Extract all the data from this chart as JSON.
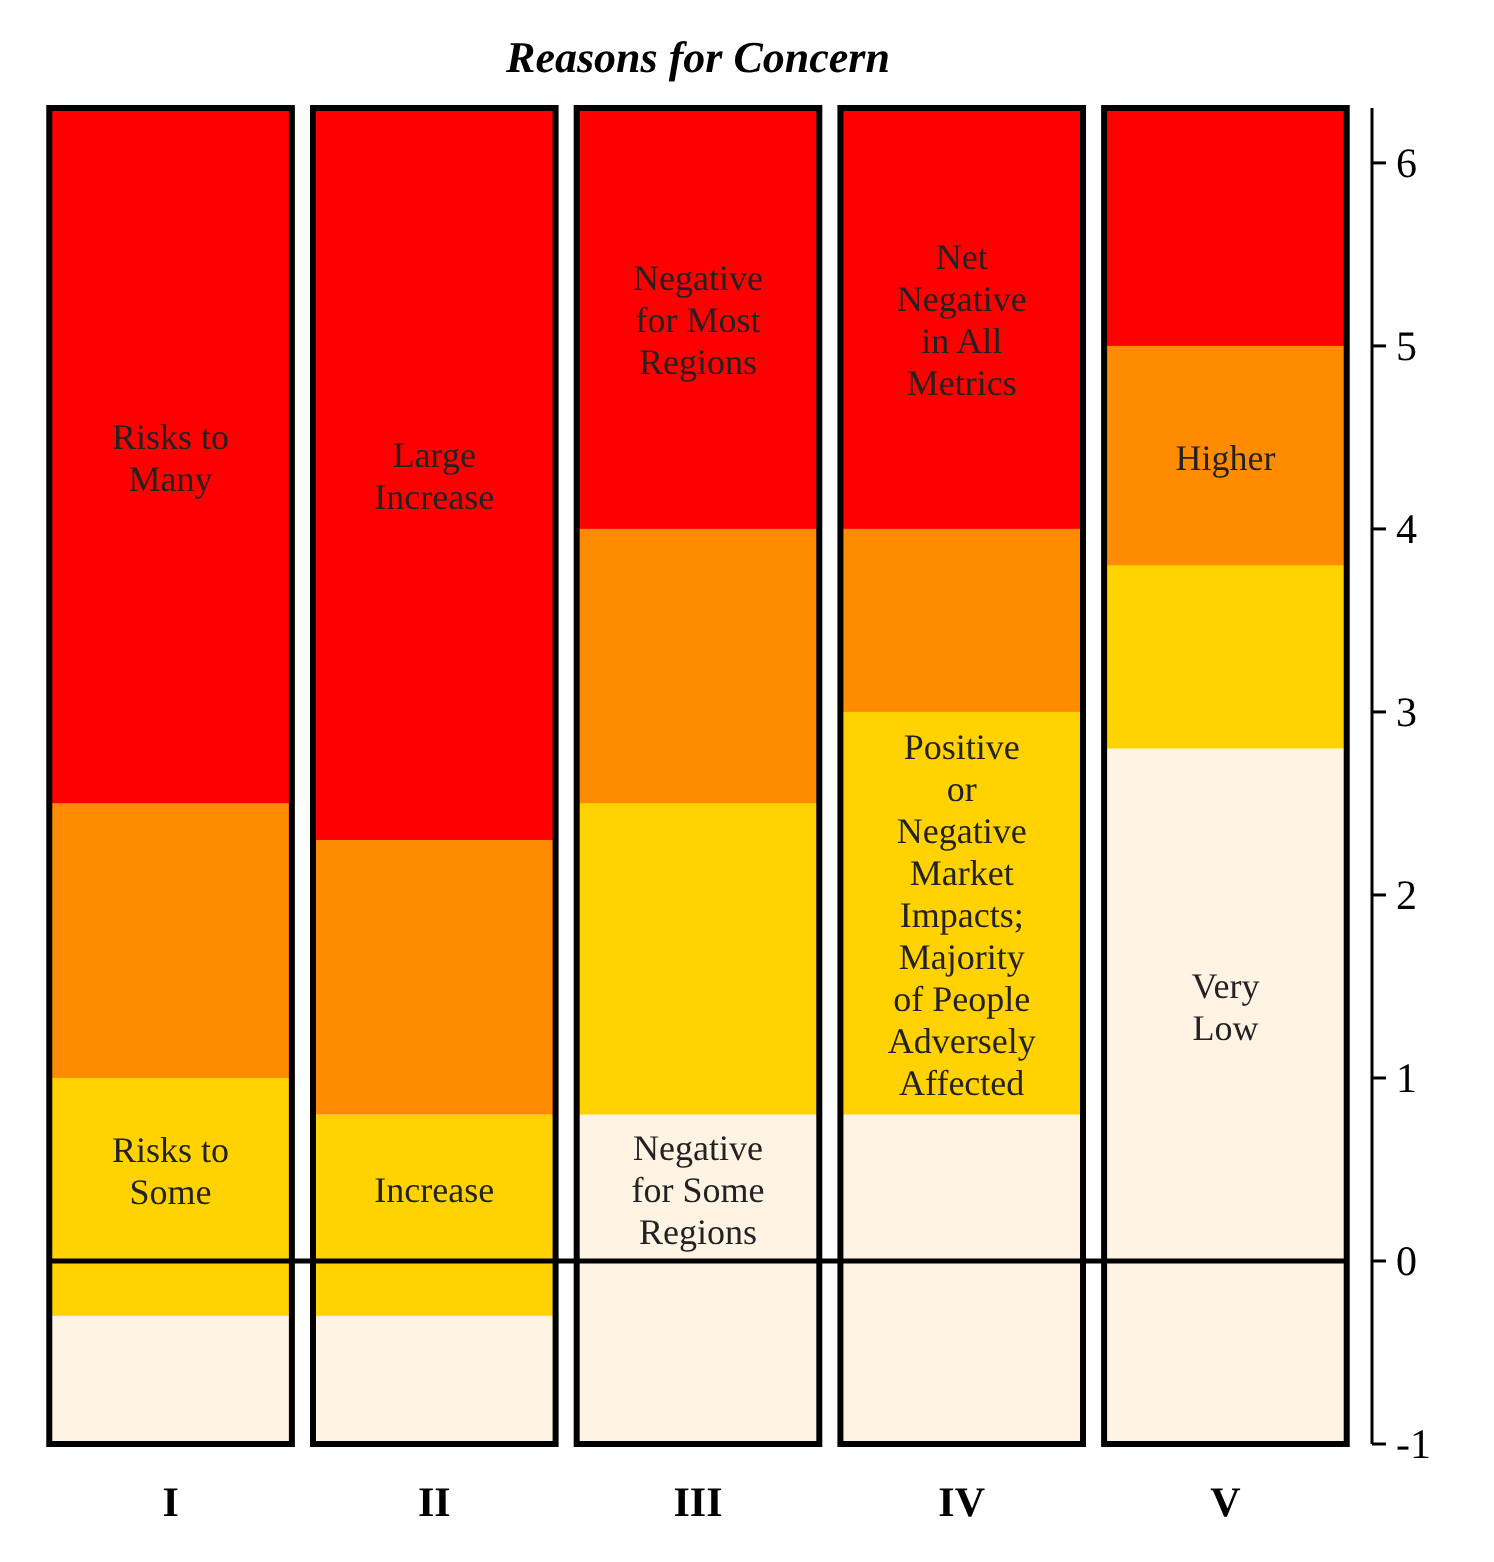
{
  "chart_data": {
    "type": "bar",
    "title": "Reasons for Concern",
    "stacked": true,
    "categories": [
      "I",
      "II",
      "III",
      "IV",
      "V"
    ],
    "series": [
      {
        "color": "#fff3e4",
        "values": [
          null,
          null,
          0.8,
          0.8,
          2.8
        ],
        "value_labels": [
          null,
          null,
          "Negative\nfor Some\nRegions",
          null,
          "Very\nLow"
        ]
      },
      {
        "color": "#ffd200",
        "values": [
          1.0,
          0.8,
          1.7,
          2.2,
          1.0
        ],
        "value_labels": [
          "Risks to\nSome",
          "Increase",
          null,
          "Positive\nor\nNegative\nMarket\nImpacts;\nMajority\nof People\nAdversely\nAffected",
          null
        ]
      },
      {
        "color": "#ff8c00",
        "values": [
          1.5,
          1.5,
          1.5,
          1.0,
          1.2
        ],
        "value_labels": [
          null,
          null,
          null,
          null,
          "Higher"
        ]
      },
      {
        "color": "#ff0000",
        "values": [
          3.8,
          4.0,
          2.3,
          2.3,
          1.3
        ],
        "value_labels": [
          "Risks to\nMany",
          "Large\nIncrease",
          "Negative\nfor Most\nRegions",
          "Net\nNegative\nin All\nMetrics",
          null
        ]
      },
      {
        "color": "#ffd200",
        "values": [
          -0.3,
          -0.3,
          null,
          null,
          null
        ]
      },
      {
        "color": "#fff3e4",
        "values": [
          -0.7,
          -0.7,
          -1,
          -1,
          -1
        ]
      }
    ],
    "ylim": [
      -1,
      6.3
    ],
    "yticks": [
      -1,
      0,
      1,
      2,
      3,
      4,
      5,
      6
    ],
    "ref_lines": [
      {
        "axis": "y",
        "value": 0,
        "color": "#000000"
      }
    ]
  }
}
